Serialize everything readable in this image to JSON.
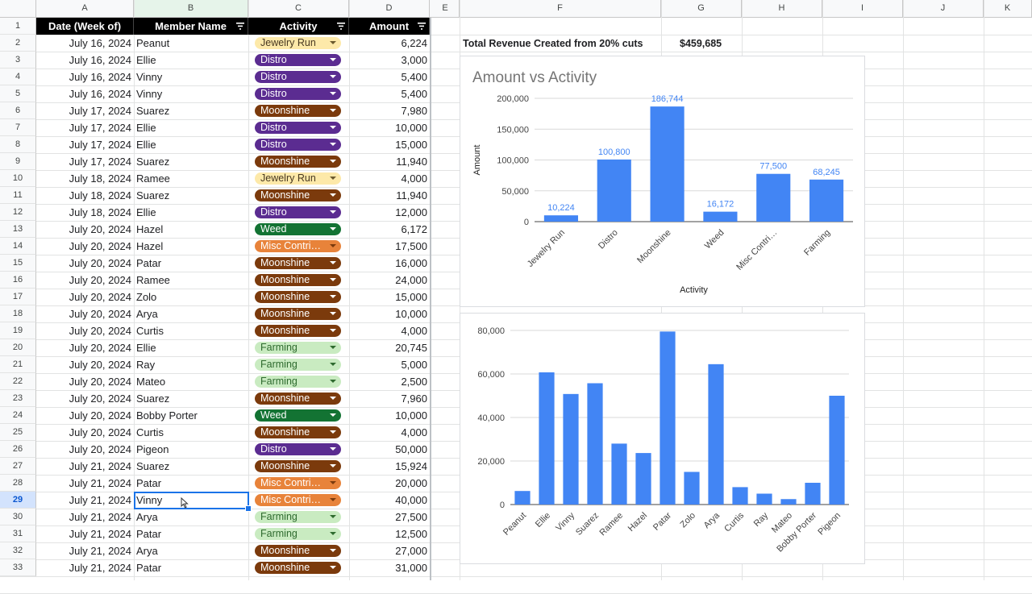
{
  "sheet": {
    "column_letters": [
      "A",
      "B",
      "C",
      "D",
      "E",
      "F",
      "G",
      "H",
      "I",
      "J",
      "K"
    ],
    "row_numbers": [
      "1",
      "2",
      "3",
      "4",
      "5",
      "6",
      "7",
      "8",
      "9",
      "10",
      "11",
      "12",
      "13",
      "14",
      "15",
      "16",
      "17",
      "18",
      "19",
      "20",
      "21",
      "22",
      "23",
      "24",
      "25",
      "26",
      "27",
      "28",
      "29",
      "30",
      "31",
      "32",
      "33"
    ],
    "active_row": "29",
    "headers": {
      "date": "Date (Week of)",
      "member": "Member Name",
      "activity": "Activity",
      "amount": "Amount"
    },
    "rows": [
      {
        "date": "July 16, 2024",
        "member": "Peanut",
        "activity": "Jewelry Run",
        "amount": "6,224"
      },
      {
        "date": "July 16, 2024",
        "member": "Ellie",
        "activity": "Distro",
        "amount": "3,000"
      },
      {
        "date": "July 16, 2024",
        "member": "Vinny",
        "activity": "Distro",
        "amount": "5,400"
      },
      {
        "date": "July 16, 2024",
        "member": "Vinny",
        "activity": "Distro",
        "amount": "5,400"
      },
      {
        "date": "July 17, 2024",
        "member": "Suarez",
        "activity": "Moonshine",
        "amount": "7,980"
      },
      {
        "date": "July 17, 2024",
        "member": "Ellie",
        "activity": "Distro",
        "amount": "10,000"
      },
      {
        "date": "July 17, 2024",
        "member": "Ellie",
        "activity": "Distro",
        "amount": "15,000"
      },
      {
        "date": "July 17, 2024",
        "member": "Suarez",
        "activity": "Moonshine",
        "amount": "11,940"
      },
      {
        "date": "July 18, 2024",
        "member": "Ramee",
        "activity": "Jewelry Run",
        "amount": "4,000"
      },
      {
        "date": "July 18, 2024",
        "member": "Suarez",
        "activity": "Moonshine",
        "amount": "11,940"
      },
      {
        "date": "July 18, 2024",
        "member": "Ellie",
        "activity": "Distro",
        "amount": "12,000"
      },
      {
        "date": "July 20, 2024",
        "member": "Hazel",
        "activity": "Weed",
        "amount": "6,172"
      },
      {
        "date": "July 20, 2024",
        "member": "Hazel",
        "activity": "Misc Contri…",
        "amount": "17,500"
      },
      {
        "date": "July 20, 2024",
        "member": "Patar",
        "activity": "Moonshine",
        "amount": "16,000"
      },
      {
        "date": "July 20, 2024",
        "member": "Ramee",
        "activity": "Moonshine",
        "amount": "24,000"
      },
      {
        "date": "July 20, 2024",
        "member": "Zolo",
        "activity": "Moonshine",
        "amount": "15,000"
      },
      {
        "date": "July 20, 2024",
        "member": "Arya",
        "activity": "Moonshine",
        "amount": "10,000"
      },
      {
        "date": "July 20, 2024",
        "member": "Curtis",
        "activity": "Moonshine",
        "amount": "4,000"
      },
      {
        "date": "July 20, 2024",
        "member": "Ellie",
        "activity": "Farming",
        "amount": "20,745"
      },
      {
        "date": "July 20, 2024",
        "member": "Ray",
        "activity": "Farming",
        "amount": "5,000"
      },
      {
        "date": "July 20, 2024",
        "member": "Mateo",
        "activity": "Farming",
        "amount": "2,500"
      },
      {
        "date": "July 20, 2024",
        "member": "Suarez",
        "activity": "Moonshine",
        "amount": "7,960"
      },
      {
        "date": "July 20, 2024",
        "member": "Bobby Porter",
        "activity": "Weed",
        "amount": "10,000"
      },
      {
        "date": "July 20, 2024",
        "member": "Curtis",
        "activity": "Moonshine",
        "amount": "4,000"
      },
      {
        "date": "July 20, 2024",
        "member": "Pigeon",
        "activity": "Distro",
        "amount": "50,000"
      },
      {
        "date": "July 21, 2024",
        "member": "Suarez",
        "activity": "Moonshine",
        "amount": "15,924"
      },
      {
        "date": "July 21, 2024",
        "member": "Patar",
        "activity": "Misc Contri…",
        "amount": "20,000"
      },
      {
        "date": "July 21, 2024",
        "member": "Vinny",
        "activity": "Misc Contri…",
        "amount": "40,000"
      },
      {
        "date": "July 21, 2024",
        "member": "Arya",
        "activity": "Farming",
        "amount": "27,500"
      },
      {
        "date": "July 21, 2024",
        "member": "Patar",
        "activity": "Farming",
        "amount": "12,500"
      },
      {
        "date": "July 21, 2024",
        "member": "Arya",
        "activity": "Moonshine",
        "amount": "27,000"
      },
      {
        "date": "July 21, 2024",
        "member": "Patar",
        "activity": "Moonshine",
        "amount": "31,000"
      }
    ],
    "activity_colors": {
      "Jewelry Run": {
        "bg": "#fde9a9",
        "fg": "#473821",
        "caret": "#6b5a2e"
      },
      "Distro": {
        "bg": "#5b2c91",
        "fg": "#ffffff",
        "caret": "#ffffff"
      },
      "Moonshine": {
        "bg": "#7b3a0c",
        "fg": "#ffffff",
        "caret": "#ffffff"
      },
      "Weed": {
        "bg": "#137333",
        "fg": "#ffffff",
        "caret": "#ffffff"
      },
      "Misc Contri…": {
        "bg": "#e8833a",
        "fg": "#ffffff",
        "caret": "#7b3a0c"
      },
      "Farming": {
        "bg": "#c9ebc1",
        "fg": "#2f6b2f",
        "caret": "#2f6b2f"
      }
    }
  },
  "summary": {
    "label": "Total Revenue Created from 20% cuts",
    "value": "$459,685"
  },
  "chart_data": [
    {
      "type": "bar",
      "title": "Amount vs Activity",
      "xlabel": "Activity",
      "ylabel": "Amount",
      "categories": [
        "Jewelry Run",
        "Distro",
        "Moonshine",
        "Weed",
        "Misc Contri…",
        "Farming"
      ],
      "values": [
        10224,
        100800,
        186744,
        16172,
        77500,
        68245
      ],
      "data_labels": [
        "10,224",
        "100,800",
        "186,744",
        "16,172",
        "77,500",
        "68,245"
      ],
      "ylim": [
        0,
        200000
      ],
      "yticks": [
        "200,000",
        "150,000",
        "100,000",
        "50,000",
        "0"
      ],
      "grid": true,
      "color": "#4285f4",
      "label_color": "#4285f4"
    },
    {
      "type": "bar",
      "title": "",
      "xlabel": "",
      "ylabel": "",
      "categories": [
        "Peanut",
        "Ellie",
        "Vinny",
        "Suarez",
        "Ramee",
        "Hazel",
        "Patar",
        "Zolo",
        "Arya",
        "Curtis",
        "Ray",
        "Mateo",
        "Bobby Porter",
        "Pigeon"
      ],
      "values": [
        6224,
        60745,
        50800,
        55744,
        28000,
        23672,
        79500,
        15000,
        64500,
        8000,
        5000,
        2500,
        10000,
        50000
      ],
      "ylim": [
        0,
        80000
      ],
      "yticks": [
        "80,000",
        "60,000",
        "40,000",
        "20,000",
        "0"
      ],
      "grid": true,
      "color": "#4285f4"
    }
  ]
}
